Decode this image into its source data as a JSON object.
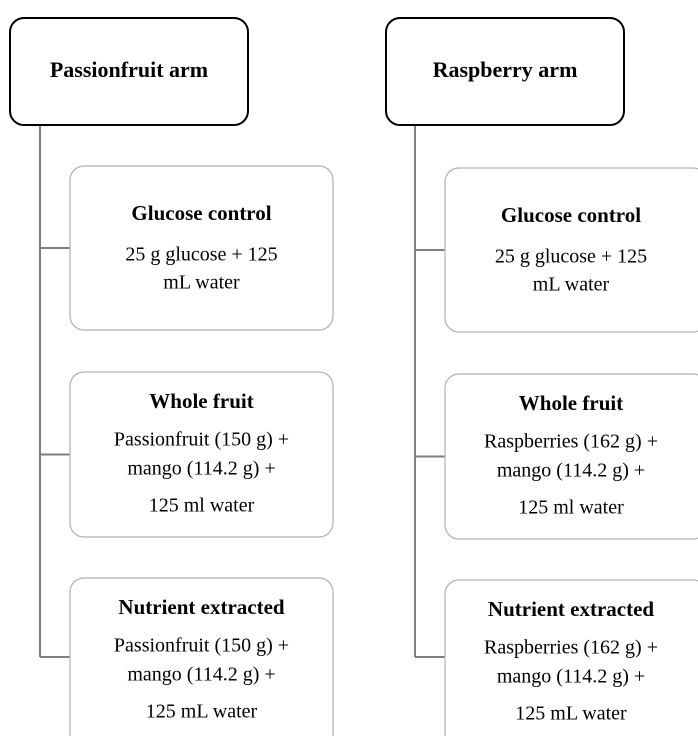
{
  "columns": [
    {
      "title": "Passionfruit arm",
      "children": [
        {
          "title": "Glucose control",
          "lines": [
            "25 g glucose + 125",
            "mL water"
          ]
        },
        {
          "title": "Whole fruit",
          "lines": [
            "Passionfruit (150 g) +",
            "mango (114.2 g) +",
            "125 ml water"
          ]
        },
        {
          "title": "Nutrient extracted",
          "lines": [
            "Passionfruit (150 g) +",
            "mango (114.2 g) +",
            "125 mL water"
          ]
        }
      ]
    },
    {
      "title": "Raspberry arm",
      "children": [
        {
          "title": "Glucose control",
          "lines": [
            "25 g glucose + 125",
            "mL water"
          ]
        },
        {
          "title": "Whole fruit",
          "lines": [
            "Raspberries (162 g) +",
            "mango (114.2 g) +",
            "125 ml water"
          ]
        },
        {
          "title": "Nutrient extracted",
          "lines": [
            "Raspberries (162 g) +",
            "mango (114.2 g) +",
            "125 mL water"
          ]
        }
      ]
    }
  ]
}
